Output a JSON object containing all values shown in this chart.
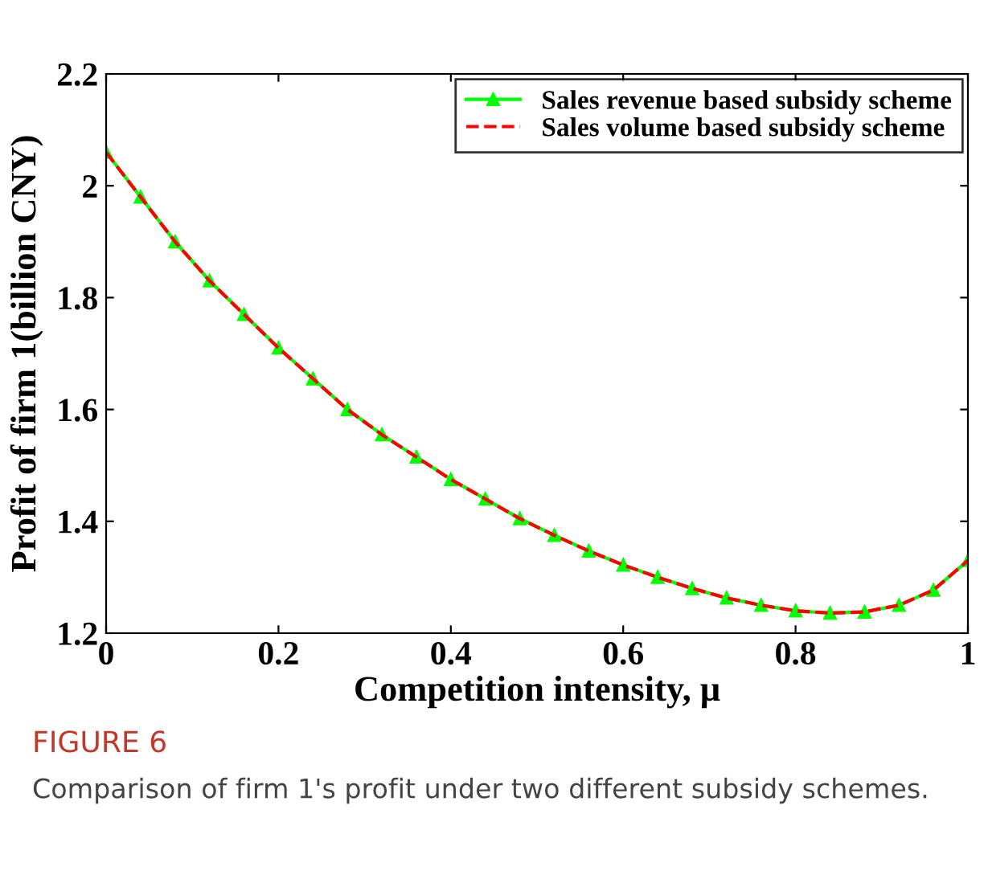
{
  "chart_data": {
    "type": "line",
    "xlabel": "Competition intensity, μ",
    "ylabel": "Profit of firm 1(billion CNY)",
    "x": [
      0,
      0.04,
      0.08,
      0.12,
      0.16,
      0.2,
      0.24,
      0.28,
      0.32,
      0.36,
      0.4,
      0.44,
      0.48,
      0.52,
      0.56,
      0.6,
      0.64,
      0.68,
      0.72,
      0.76,
      0.8,
      0.84,
      0.88,
      0.92,
      0.96,
      1
    ],
    "series": [
      {
        "name": "Sales revenue based subsidy scheme",
        "color": "#00ff00",
        "marker": "triangle",
        "line_style": "solid",
        "values": [
          2.06,
          1.98,
          1.9,
          1.83,
          1.77,
          1.71,
          1.655,
          1.6,
          1.555,
          1.515,
          1.475,
          1.44,
          1.405,
          1.375,
          1.347,
          1.322,
          1.3,
          1.28,
          1.263,
          1.25,
          1.24,
          1.236,
          1.238,
          1.25,
          1.277,
          1.33
        ]
      },
      {
        "name": "Sales volume based subsidy scheme",
        "color": "#ff0000",
        "marker": "none",
        "line_style": "dashed",
        "values": [
          2.06,
          1.98,
          1.9,
          1.83,
          1.77,
          1.71,
          1.655,
          1.6,
          1.555,
          1.515,
          1.475,
          1.44,
          1.405,
          1.375,
          1.347,
          1.322,
          1.3,
          1.28,
          1.263,
          1.25,
          1.24,
          1.236,
          1.238,
          1.25,
          1.277,
          1.33
        ]
      }
    ],
    "xlim": [
      0,
      1
    ],
    "ylim": [
      1.2,
      2.2
    ],
    "xticks": [
      0,
      0.2,
      0.4,
      0.6,
      0.8,
      1
    ],
    "yticks": [
      1.2,
      1.4,
      1.6,
      1.8,
      2,
      2.2
    ],
    "grid": false,
    "legend": "top right",
    "annotations": [
      "FIGURE 6",
      "Comparison of firm 1's profit under two different subsidy schemes."
    ]
  }
}
